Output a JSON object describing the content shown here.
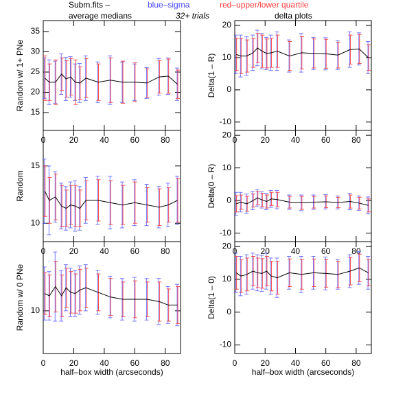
{
  "header": {
    "file": "Subm.fits –",
    "blue": "blue–sigma",
    "red": "red–upper/lower quartile",
    "trials": "32+ trials",
    "left_title": "average medians",
    "right_title": "delta plots"
  },
  "chart_data": [
    {
      "type": "errorbar",
      "ylabel": "Random w/ 1+ PNe",
      "xlim": [
        0,
        90
      ],
      "xticks": [
        0,
        20,
        40,
        60,
        80
      ],
      "ylim": [
        10.6,
        37.7
      ],
      "yticks": [
        15,
        20,
        25,
        30,
        35
      ],
      "color": "#000000",
      "sigma_color": "#5a5aff",
      "quartile_color": "#ff3030",
      "x": [
        1,
        4,
        8,
        12,
        15,
        18,
        21,
        24,
        28,
        36,
        44,
        52,
        60,
        68,
        76,
        82,
        88
      ],
      "values": [
        23.5,
        22.5,
        22.5,
        24.5,
        23.3,
        23.8,
        22.5,
        22.3,
        23.5,
        22.5,
        23,
        22.5,
        22.5,
        22.3,
        23.8,
        24,
        22
      ],
      "sigma": [
        5,
        5.5,
        5.2,
        5,
        5.3,
        5,
        4.5,
        4.8,
        5.5,
        5,
        6,
        5,
        4.5,
        3.8,
        4.5,
        4.5,
        4
      ],
      "quartile": [
        5.5,
        4.5,
        5.5,
        4,
        4.5,
        4.5,
        5.5,
        4,
        4.8,
        4.5,
        5.5,
        5.2,
        4.8,
        3.5,
        4,
        4.2,
        3.5
      ]
    },
    {
      "type": "errorbar",
      "ylabel": "Delta(1 – R)",
      "xlim": [
        0,
        90
      ],
      "xticks": [
        0,
        20,
        40,
        60,
        80
      ],
      "ylim": [
        -12.6,
        21.5
      ],
      "yticks": [
        -10,
        0,
        10,
        20
      ],
      "color": "#000000",
      "sigma_color": "#5a5aff",
      "quartile_color": "#ff3030",
      "x": [
        1,
        4,
        8,
        12,
        15,
        18,
        21,
        24,
        28,
        36,
        44,
        52,
        60,
        68,
        76,
        82,
        88
      ],
      "values": [
        11,
        10.5,
        10.5,
        11.5,
        13,
        12,
        11.3,
        11.5,
        12,
        10.5,
        11.5,
        11.3,
        11.2,
        10.8,
        12.5,
        12.7,
        10
      ],
      "sigma": [
        6,
        6.5,
        6,
        5.5,
        5.5,
        5.5,
        5,
        5.5,
        6,
        5,
        6,
        5,
        5,
        4.5,
        5.5,
        5,
        5
      ],
      "quartile": [
        5,
        5.5,
        5,
        4.5,
        4.5,
        5,
        4.5,
        4.5,
        5,
        4.5,
        5,
        4.5,
        4.5,
        4,
        4.5,
        4.5,
        4
      ]
    },
    {
      "type": "errorbar",
      "ylabel": "Random",
      "xlim": [
        0,
        90
      ],
      "xticks": [
        0,
        20,
        40,
        60,
        80
      ],
      "ylim": [
        8.4,
        18.1
      ],
      "yticks": [
        10,
        15
      ],
      "color": "#000000",
      "sigma_color": "#5a5aff",
      "quartile_color": "#ff3030",
      "x": [
        1,
        4,
        8,
        12,
        15,
        18,
        21,
        24,
        28,
        36,
        44,
        52,
        60,
        68,
        76,
        82,
        88
      ],
      "values": [
        12.8,
        12,
        12.3,
        11.5,
        11.3,
        11.6,
        11.5,
        11.3,
        12,
        12,
        11.8,
        11.6,
        11.8,
        11.6,
        11.4,
        11.6,
        12
      ],
      "sigma": [
        2.8,
        3,
        2.2,
        2,
        1.9,
        2,
        2.2,
        1.9,
        2,
        2.1,
        2.3,
        2,
        2,
        1.8,
        1.8,
        1.9,
        2.1
      ],
      "quartile": [
        2.2,
        2,
        2,
        1.8,
        1.6,
        1.7,
        1.8,
        1.6,
        1.7,
        1.8,
        1.9,
        1.7,
        1.8,
        1.5,
        1.6,
        1.5,
        1.9
      ]
    },
    {
      "type": "errorbar",
      "ylabel": "Delta(0 – R)",
      "xlim": [
        0,
        90
      ],
      "xticks": [
        0,
        20,
        40,
        60,
        80
      ],
      "ylim": [
        -12.6,
        21.5
      ],
      "yticks": [
        -10,
        0,
        10,
        20
      ],
      "color": "#000000",
      "sigma_color": "#5a5aff",
      "quartile_color": "#ff3030",
      "x": [
        1,
        4,
        8,
        12,
        15,
        18,
        21,
        24,
        28,
        36,
        44,
        52,
        60,
        68,
        76,
        82,
        88
      ],
      "values": [
        -1,
        -0.5,
        -1,
        0,
        0.8,
        0.2,
        -0.3,
        0.5,
        0.3,
        -0.5,
        -0.7,
        -0.5,
        -0.4,
        -0.6,
        -0.3,
        -0.8,
        -1.5
      ],
      "sigma": [
        3.5,
        3,
        3,
        2.8,
        2.5,
        2.5,
        2.5,
        2.6,
        2.8,
        2.2,
        2.4,
        2.2,
        2.2,
        2,
        2.5,
        2.2,
        2.6
      ],
      "quartile": [
        2.5,
        2.2,
        2.3,
        2,
        2,
        2,
        2,
        2,
        2.2,
        1.8,
        2,
        1.8,
        1.8,
        1.6,
        2,
        1.8,
        2
      ]
    },
    {
      "type": "errorbar",
      "ylabel": "Random w/ 0 PNe",
      "xlabel": "half–box width (arcseconds)",
      "xlim": [
        0,
        90
      ],
      "xticks": [
        0,
        20,
        40,
        60,
        80
      ],
      "ylim": [
        6.3,
        16.0
      ],
      "yticks": [
        10
      ],
      "color": "#000000",
      "sigma_color": "#5a5aff",
      "quartile_color": "#ff3030",
      "x": [
        1,
        4,
        8,
        12,
        15,
        18,
        21,
        24,
        28,
        36,
        44,
        52,
        60,
        68,
        76,
        82,
        88
      ],
      "values": [
        11.5,
        11.3,
        12.1,
        11.3,
        12,
        11.6,
        11.5,
        11.8,
        12,
        11.6,
        11.2,
        11,
        11,
        11,
        10.8,
        10.5,
        10.5
      ],
      "sigma": [
        2.3,
        2.1,
        3,
        2.2,
        2,
        2.1,
        2,
        2.1,
        2,
        1.9,
        1.8,
        1.8,
        1.9,
        1.8,
        2,
        1.6,
        1.8
      ],
      "quartile": [
        1.8,
        1.8,
        2.2,
        1.8,
        1.7,
        1.8,
        1.7,
        1.8,
        1.7,
        1.6,
        1.6,
        1.5,
        1.6,
        1.5,
        1.7,
        1.4,
        1.6
      ]
    },
    {
      "type": "errorbar",
      "ylabel": "Delta(1 – 0)",
      "xlabel": "half–box width (arcseconds)",
      "xlim": [
        0,
        90
      ],
      "xticks": [
        0,
        20,
        40,
        60,
        80
      ],
      "ylim": [
        -12.6,
        21.5
      ],
      "yticks": [
        -10,
        0,
        10,
        20
      ],
      "color": "#000000",
      "sigma_color": "#5a5aff",
      "quartile_color": "#ff3030",
      "x": [
        1,
        4,
        8,
        12,
        15,
        18,
        21,
        24,
        28,
        36,
        44,
        52,
        60,
        68,
        76,
        82,
        88
      ],
      "values": [
        12,
        11,
        11.5,
        12.5,
        12,
        11.8,
        12.5,
        11,
        10.5,
        12,
        11.5,
        12,
        11.8,
        11.5,
        12.5,
        13.5,
        12
      ],
      "sigma": [
        6,
        6,
        6,
        5.5,
        5.5,
        5.5,
        5.5,
        5.5,
        6,
        5,
        5.5,
        5,
        5,
        4.5,
        5,
        5,
        5
      ],
      "quartile": [
        5,
        5,
        5,
        4.5,
        4.5,
        4.5,
        4.5,
        4.5,
        5,
        4.2,
        4.5,
        4.2,
        4.2,
        4,
        4.2,
        4.2,
        4
      ]
    }
  ]
}
